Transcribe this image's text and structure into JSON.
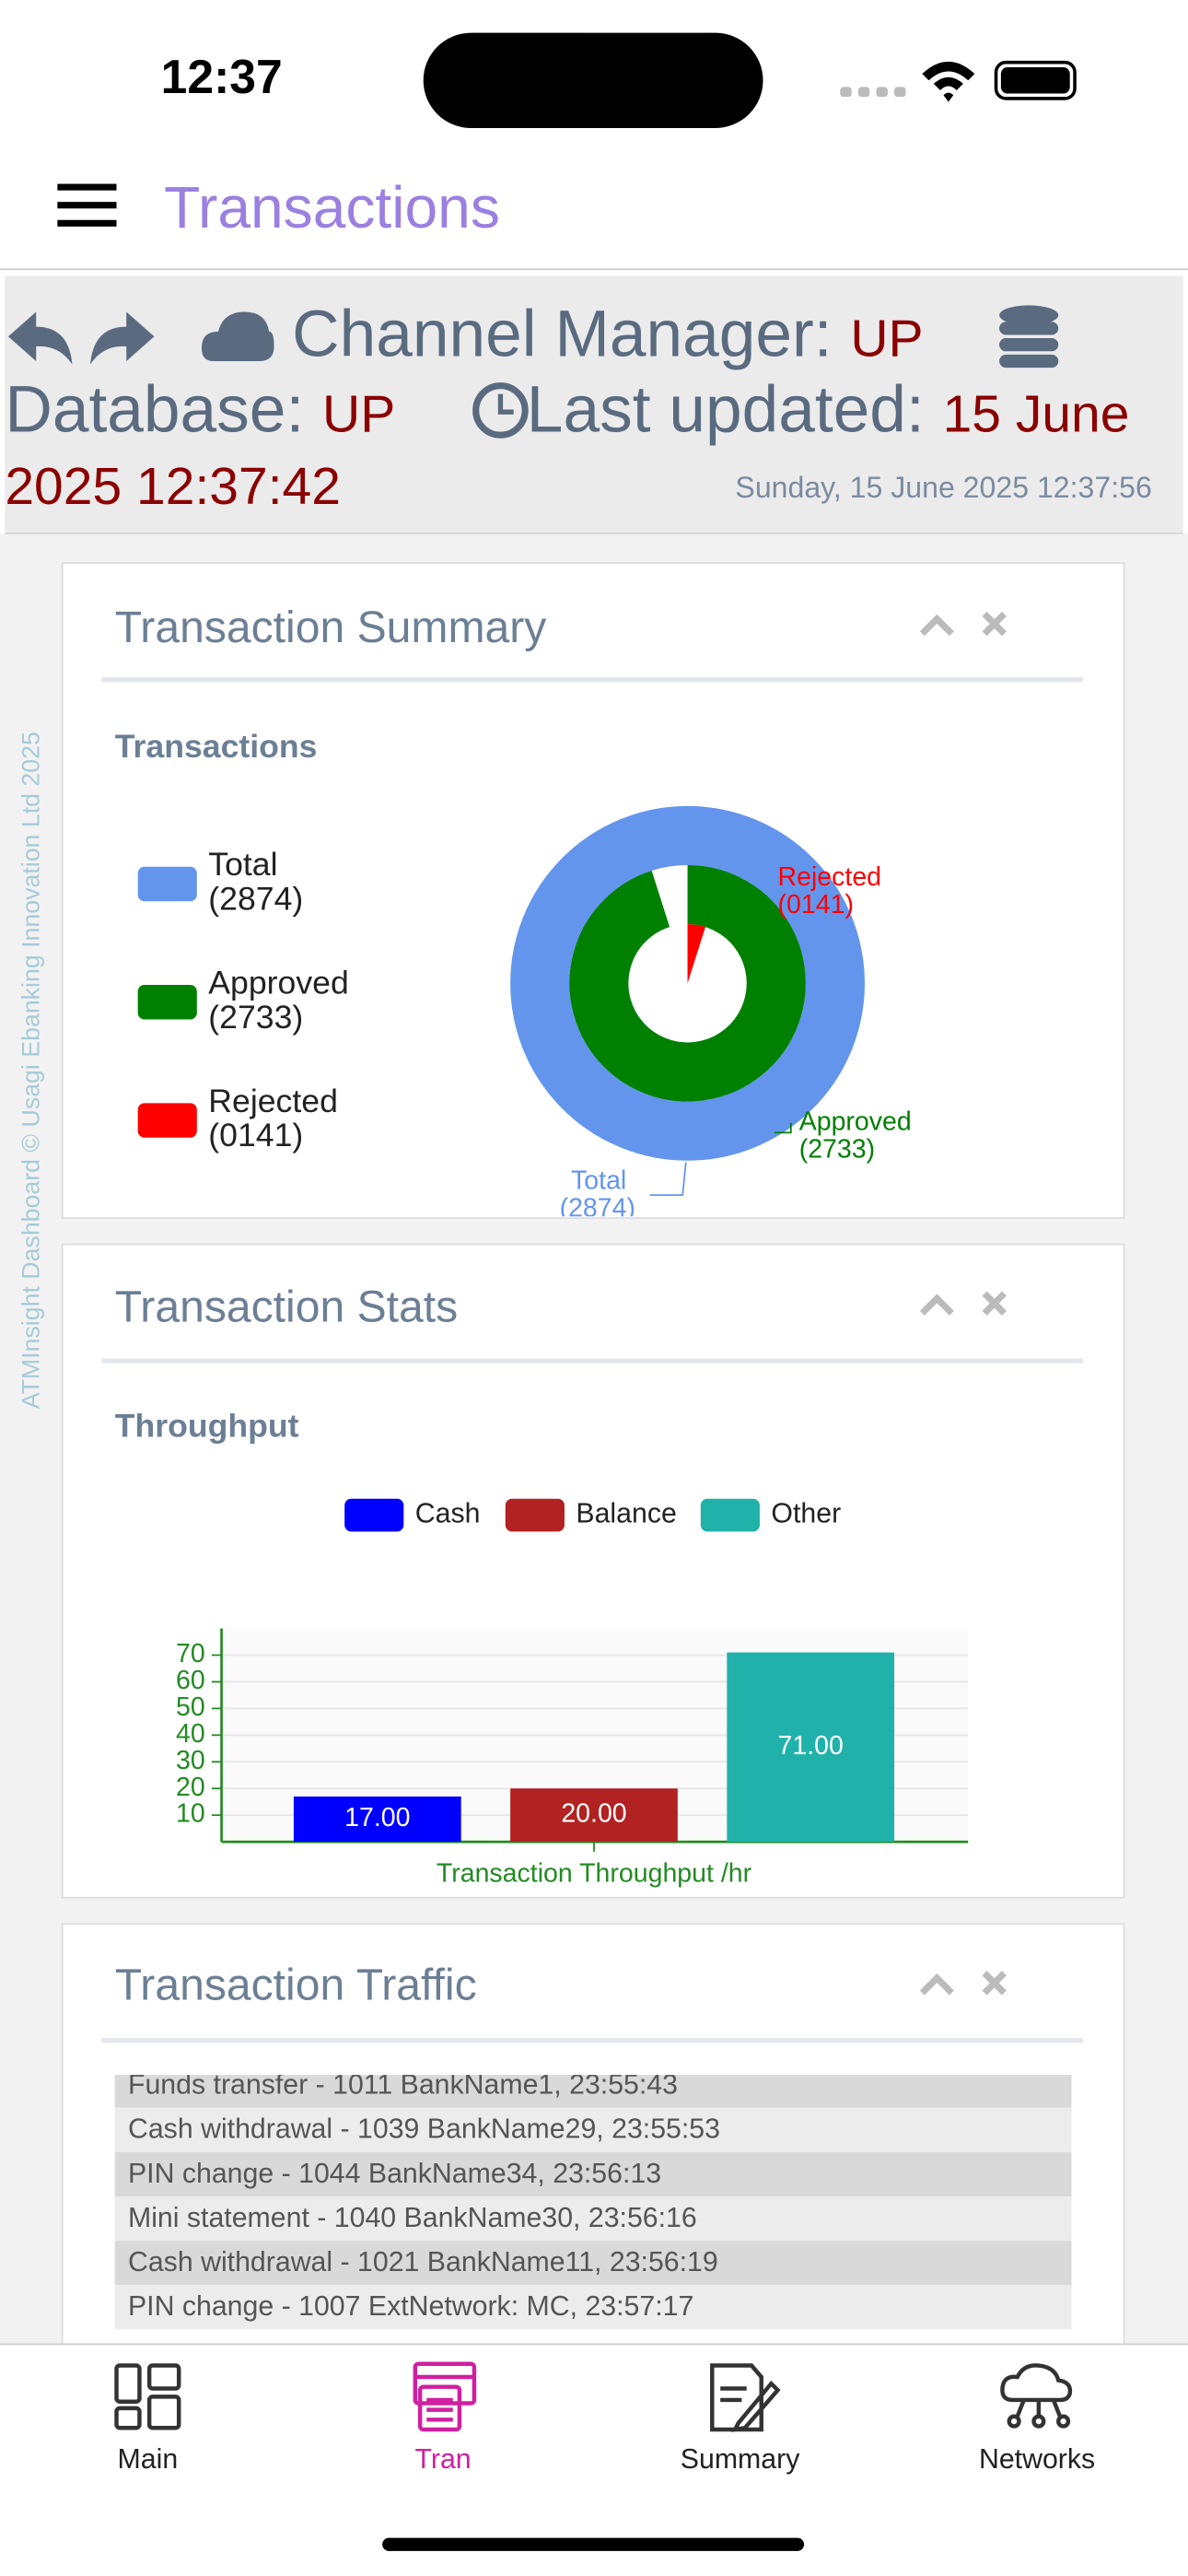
{
  "status_bar": {
    "time": "12:37"
  },
  "header": {
    "title": "Transactions"
  },
  "status": {
    "channel_manager_label": "Channel Manager:",
    "channel_manager_value": "UP",
    "database_label": "Database:",
    "database_value": "UP",
    "last_updated_label": "Last updated:",
    "last_updated_value": "15 June 2025 12:37:42",
    "current_time": "Sunday, 15 June 2025 12:37:56"
  },
  "watermark": "ATMInsight Dashboard © Usagi Ebanking Innovation Ltd 2025",
  "panels": [
    {
      "title": "Transaction Summary",
      "subtitle": "Transactions",
      "chart": {
        "type": "pie",
        "categories": [
          "Total",
          "Approved",
          "Rejected"
        ],
        "values": [
          2874,
          2733,
          141
        ],
        "value_labels": [
          "(2874)",
          "(2733)",
          "(0141)"
        ],
        "colors": [
          "#6495ed",
          "#008000",
          "#ff0000"
        ]
      }
    },
    {
      "title": "Transaction Stats",
      "subtitle": "Throughput",
      "chart": {
        "type": "bar",
        "series": [
          {
            "name": "Cash",
            "color": "#0000ff",
            "values": [
              17
            ],
            "value_labels": [
              "17.00"
            ]
          },
          {
            "name": "Balance",
            "color": "#b22222",
            "values": [
              20
            ],
            "value_labels": [
              "20.00"
            ]
          },
          {
            "name": "Other",
            "color": "#20b2aa",
            "values": [
              71
            ],
            "value_labels": [
              "71.00"
            ]
          }
        ],
        "xlabel": "Transaction Throughput /hr",
        "ylim": [
          0,
          80
        ],
        "yticks": [
          10,
          20,
          30,
          40,
          50,
          60,
          70
        ],
        "grid": true
      }
    },
    {
      "title": "Transaction Traffic",
      "items": [
        "Funds transfer - 1011 BankName1, 23:55:43",
        "Cash withdrawal - 1039 BankName29, 23:55:53",
        "PIN change - 1044 BankName34, 23:56:13",
        "Mini statement - 1040 BankName30, 23:56:16",
        "Cash withdrawal - 1021 BankName11, 23:56:19",
        "PIN change - 1007 ExtNetwork: MC, 23:57:17"
      ]
    }
  ],
  "nav": {
    "items": [
      "Main",
      "Tran",
      "Summary",
      "Networks"
    ],
    "active": 1
  }
}
